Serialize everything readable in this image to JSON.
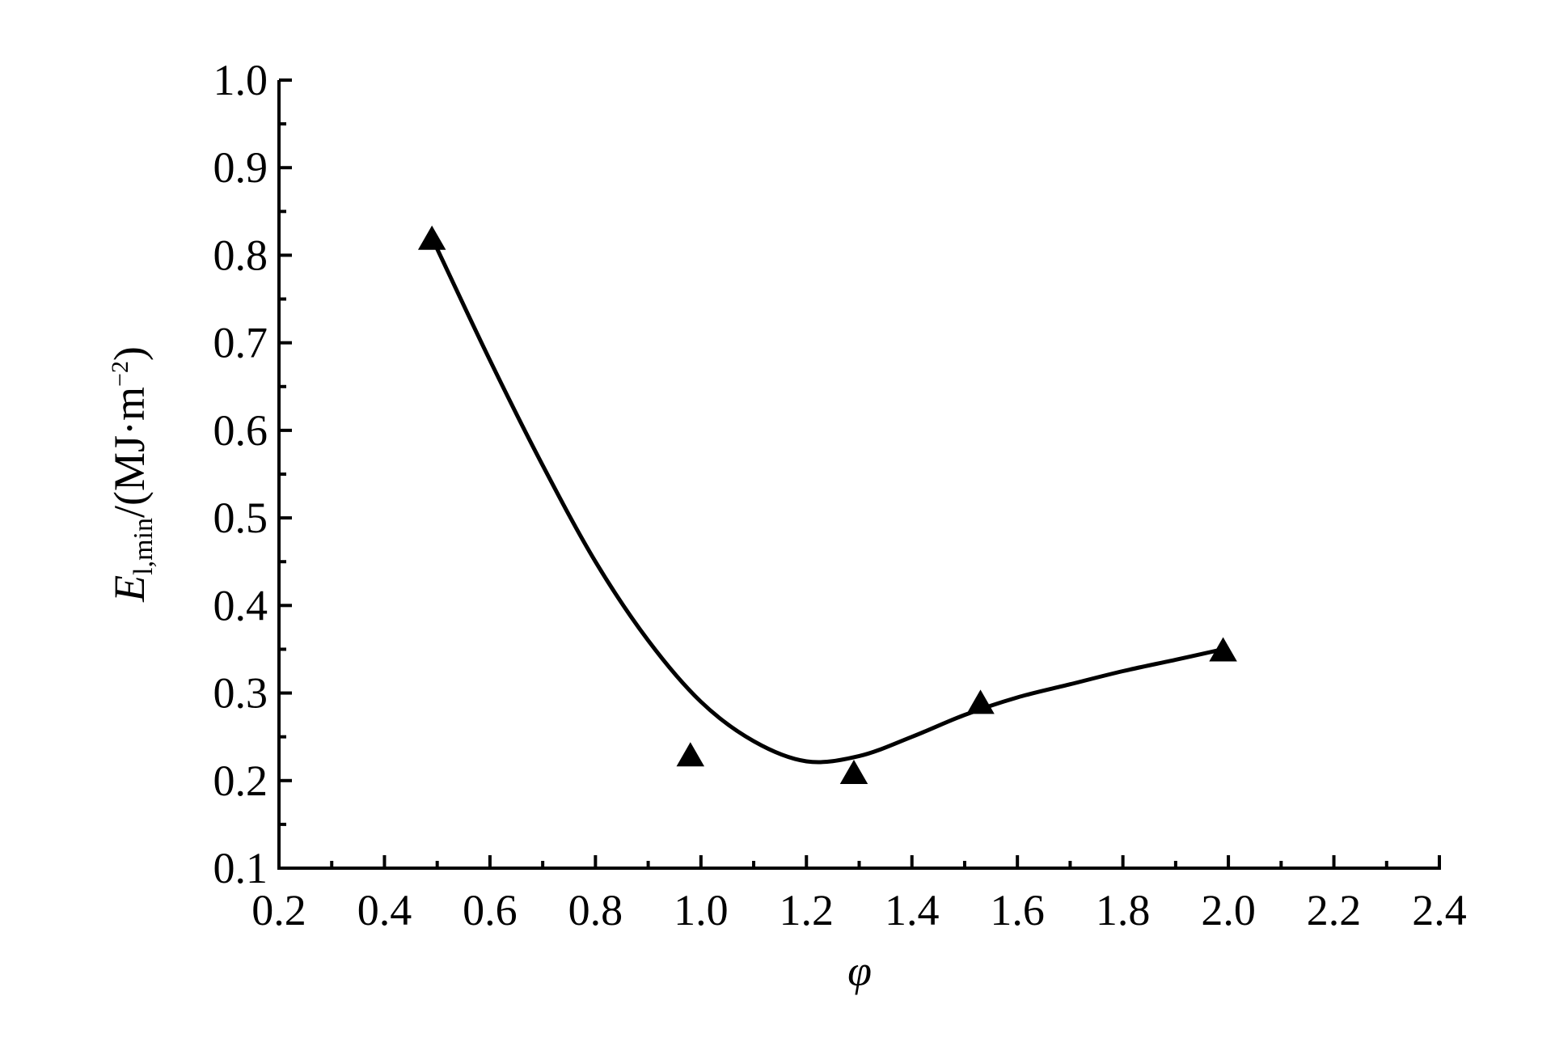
{
  "chart_data": {
    "type": "scatter",
    "xlabel": "φ",
    "ylabel": [
      "E",
      "l,min",
      "/(MJ·m",
      "−2",
      ")"
    ],
    "xlim": [
      0.2,
      2.4
    ],
    "ylim": [
      0.1,
      1.0
    ],
    "xticks": [
      0.2,
      0.4,
      0.6,
      0.8,
      {
        "value": 1,
        "label": "1.0"
      },
      1.2,
      1.4,
      1.6,
      1.8,
      {
        "value": 2,
        "label": "2.0"
      },
      2.2,
      2.4
    ],
    "yticks": [
      0.1,
      0.2,
      0.3,
      0.4,
      0.5,
      0.6,
      0.7,
      0.8,
      0.9,
      {
        "value": 1,
        "label": "1.0"
      }
    ],
    "series": [
      {
        "color": "#000000",
        "marker": "triangle",
        "x": [
          0.49,
          0.98,
          1.29,
          1.53,
          1.99
        ],
        "values": [
          0.82,
          0.23,
          0.21,
          0.29,
          0.35
        ]
      },
      {
        "color": "#000000",
        "line": true,
        "x": [
          0.49,
          0.6,
          0.7,
          0.8,
          0.9,
          1.0,
          1.1,
          1.2,
          1.3,
          1.4,
          1.5,
          1.6,
          1.7,
          1.8,
          1.9,
          1.99
        ],
        "values": [
          0.82,
          0.68,
          0.56,
          0.45,
          0.36,
          0.29,
          0.245,
          0.222,
          0.228,
          0.25,
          0.275,
          0.295,
          0.31,
          0.325,
          0.338,
          0.35
        ]
      }
    ]
  }
}
